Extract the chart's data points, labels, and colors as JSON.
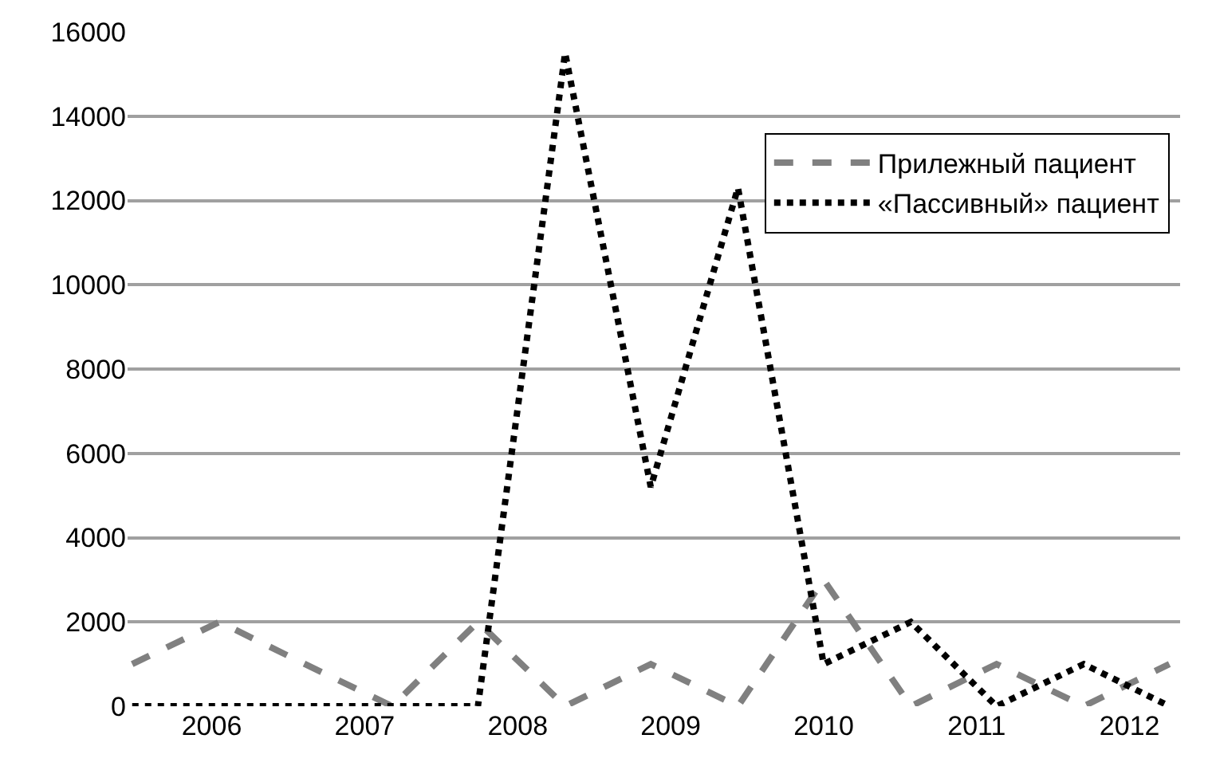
{
  "chart_data": {
    "type": "line",
    "x": [
      2005.48,
      2006.05,
      2006.61,
      2007.18,
      2007.74,
      2008.31,
      2008.87,
      2009.44,
      2010.0,
      2010.57,
      2011.13,
      2011.7,
      2012.26
    ],
    "series": [
      {
        "name": "Прилежный пациент",
        "color": "#808080",
        "line_style": "dashed",
        "values": [
          1000,
          2000,
          1000,
          0,
          2000,
          0,
          1000,
          0,
          3000,
          0,
          1000,
          0,
          1000
        ]
      },
      {
        "name": "«Пассивный» пациент",
        "color": "#000000",
        "line_style": "dotted",
        "values": [
          0,
          0,
          0,
          0,
          0,
          15500,
          5200,
          12300,
          1000,
          2000,
          0,
          1000,
          0
        ]
      }
    ],
    "xlim": [
      2005.45,
      2012.33
    ],
    "xticks": [
      2006,
      2007,
      2008,
      2009,
      2010,
      2011,
      2012
    ],
    "ylim": [
      0,
      16000
    ],
    "yticks": [
      0,
      2000,
      4000,
      6000,
      8000,
      10000,
      12000,
      14000,
      16000
    ],
    "grid": "y",
    "legend": "top right",
    "marker": "none"
  }
}
